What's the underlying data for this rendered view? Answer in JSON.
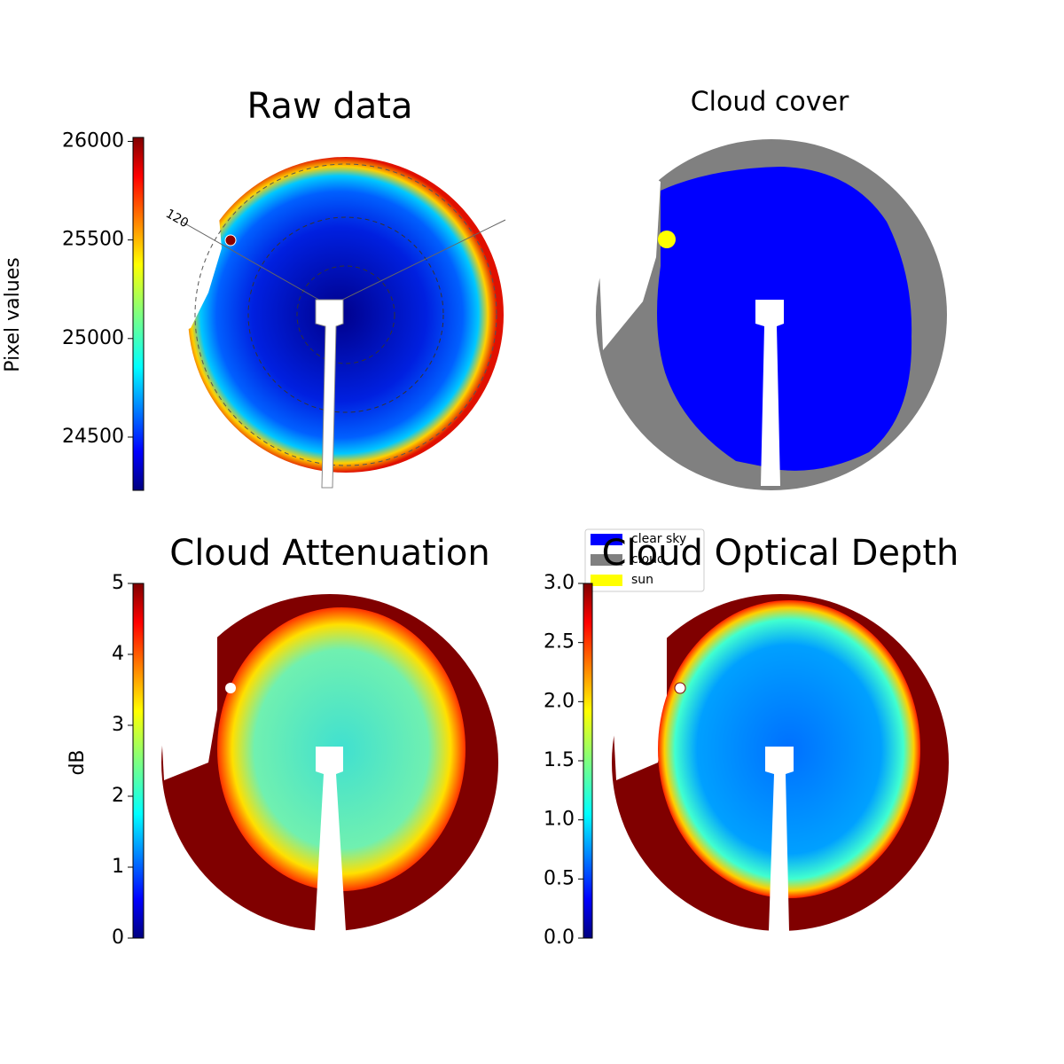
{
  "chart_data": [
    {
      "type": "image",
      "title": "Raw data",
      "colorbar_label": "Pixel values",
      "colormap": "jet",
      "clim": [
        24230,
        26020
      ],
      "cticks": [
        24500,
        25000,
        25500,
        26000
      ],
      "annotations": [
        "120"
      ]
    },
    {
      "type": "image",
      "title": "Cloud cover",
      "legend": [
        {
          "name": "clear sky",
          "color": "#0000ff"
        },
        {
          "name": "cloud",
          "color": "#808080"
        },
        {
          "name": "sun",
          "color": "#ffff00"
        }
      ]
    },
    {
      "type": "image",
      "title": "Cloud Attenuation",
      "colorbar_label": "dB",
      "colormap": "jet",
      "clim": [
        0,
        5
      ],
      "cticks": [
        0,
        1,
        2,
        3,
        4,
        5
      ]
    },
    {
      "type": "image",
      "title": "Cloud Optical Depth",
      "colormap": "jet",
      "clim": [
        0,
        3
      ],
      "cticks": [
        {
          "value": 0,
          "label": "0.0"
        },
        0.5,
        {
          "value": 1,
          "label": "1.0"
        },
        1.5,
        {
          "value": 2,
          "label": "2.0"
        },
        2.5,
        {
          "value": 3,
          "label": "3.0"
        }
      ]
    }
  ]
}
